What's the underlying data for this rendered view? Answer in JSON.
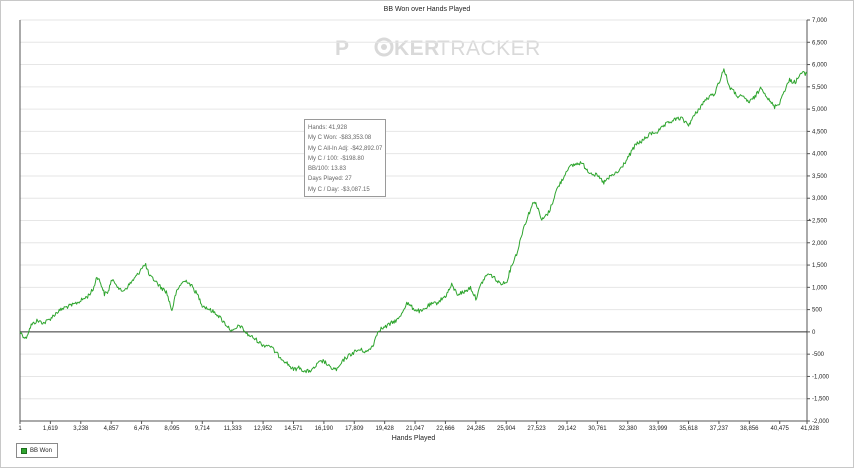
{
  "chart_data": {
    "type": "line",
    "title": "BB Won over Hands Played",
    "xlabel": "Hands Played",
    "ylabel": "",
    "y_axis_side": "right",
    "xlim": [
      1,
      41928
    ],
    "ylim": [
      -2000,
      7000
    ],
    "x_ticks": [
      1,
      1619,
      3238,
      4857,
      6476,
      8095,
      9714,
      11333,
      12952,
      14571,
      16190,
      17809,
      19428,
      21047,
      22666,
      24285,
      25904,
      27523,
      29142,
      30761,
      32380,
      33999,
      35618,
      37237,
      38856,
      40475,
      41928
    ],
    "x_tick_labels": [
      "1",
      "1,619",
      "3,238",
      "4,857",
      "6,476",
      "8,095",
      "9,714",
      "11,333",
      "12,952",
      "14,571",
      "16,190",
      "17,809",
      "19,428",
      "21,047",
      "22,666",
      "24,285",
      "25,904",
      "27,523",
      "29,142",
      "30,761",
      "32,380",
      "33,999",
      "35,618",
      "37,237",
      "38,856",
      "40,475",
      "41,928"
    ],
    "y_ticks": [
      -2000,
      -1500,
      -1000,
      -500,
      0,
      500,
      1000,
      1500,
      2000,
      2500,
      3000,
      3500,
      4000,
      4500,
      5000,
      5500,
      6000,
      6500,
      7000
    ],
    "y_tick_labels": [
      "-2,000",
      "-1,500",
      "-1,000",
      "-500",
      "0",
      "500",
      "1,000",
      "1,500",
      "2,000",
      "2,500",
      "3,000",
      "3,500",
      "4,000",
      "4,500",
      "5,000",
      "5,500",
      "6,000",
      "6,500",
      "7,000"
    ],
    "grid": "horizontal",
    "legend_placement": "bottom-left",
    "series": [
      {
        "name": "BB Won",
        "color": "#2fa52f",
        "points": [
          [
            1,
            0
          ],
          [
            300,
            -150
          ],
          [
            600,
            150
          ],
          [
            900,
            250
          ],
          [
            1300,
            200
          ],
          [
            1619,
            300
          ],
          [
            2000,
            450
          ],
          [
            2400,
            550
          ],
          [
            2800,
            600
          ],
          [
            3238,
            700
          ],
          [
            3600,
            800
          ],
          [
            3900,
            950
          ],
          [
            4100,
            1250
          ],
          [
            4300,
            1100
          ],
          [
            4500,
            850
          ],
          [
            4700,
            900
          ],
          [
            4857,
            1150
          ],
          [
            5100,
            1100
          ],
          [
            5400,
            900
          ],
          [
            5700,
            1000
          ],
          [
            6000,
            1150
          ],
          [
            6300,
            1300
          ],
          [
            6476,
            1450
          ],
          [
            6700,
            1500
          ],
          [
            6900,
            1250
          ],
          [
            7200,
            1150
          ],
          [
            7500,
            1000
          ],
          [
            7800,
            900
          ],
          [
            8095,
            480
          ],
          [
            8300,
            850
          ],
          [
            8600,
            1100
          ],
          [
            8900,
            1150
          ],
          [
            9200,
            1000
          ],
          [
            9500,
            800
          ],
          [
            9714,
            600
          ],
          [
            10100,
            500
          ],
          [
            10500,
            400
          ],
          [
            10900,
            200
          ],
          [
            11333,
            0
          ],
          [
            11700,
            150
          ],
          [
            12100,
            -50
          ],
          [
            12500,
            -150
          ],
          [
            12952,
            -300
          ],
          [
            13300,
            -300
          ],
          [
            13700,
            -500
          ],
          [
            14100,
            -650
          ],
          [
            14571,
            -850
          ],
          [
            14900,
            -800
          ],
          [
            15200,
            -900
          ],
          [
            15600,
            -850
          ],
          [
            15900,
            -700
          ],
          [
            16190,
            -650
          ],
          [
            16500,
            -800
          ],
          [
            16900,
            -850
          ],
          [
            17300,
            -600
          ],
          [
            17809,
            -450
          ],
          [
            18100,
            -400
          ],
          [
            18500,
            -450
          ],
          [
            18800,
            -300
          ],
          [
            19100,
            50
          ],
          [
            19428,
            100
          ],
          [
            19800,
            200
          ],
          [
            20200,
            300
          ],
          [
            20600,
            650
          ],
          [
            21047,
            500
          ],
          [
            21400,
            450
          ],
          [
            21800,
            600
          ],
          [
            22200,
            650
          ],
          [
            22666,
            800
          ],
          [
            23000,
            1050
          ],
          [
            23300,
            850
          ],
          [
            23700,
            900
          ],
          [
            24000,
            1000
          ],
          [
            24285,
            750
          ],
          [
            24600,
            1100
          ],
          [
            24900,
            1300
          ],
          [
            25200,
            1250
          ],
          [
            25500,
            1100
          ],
          [
            25904,
            1100
          ],
          [
            26200,
            1500
          ],
          [
            26500,
            1800
          ],
          [
            26800,
            2300
          ],
          [
            27100,
            2650
          ],
          [
            27400,
            2950
          ],
          [
            27523,
            2850
          ],
          [
            27800,
            2500
          ],
          [
            28200,
            2700
          ],
          [
            28600,
            3200
          ],
          [
            29000,
            3500
          ],
          [
            29142,
            3650
          ],
          [
            29500,
            3750
          ],
          [
            29900,
            3800
          ],
          [
            30300,
            3600
          ],
          [
            30761,
            3500
          ],
          [
            31100,
            3350
          ],
          [
            31500,
            3500
          ],
          [
            31900,
            3600
          ],
          [
            32380,
            3900
          ],
          [
            32800,
            4200
          ],
          [
            33200,
            4300
          ],
          [
            33600,
            4450
          ],
          [
            33999,
            4500
          ],
          [
            34400,
            4650
          ],
          [
            34800,
            4750
          ],
          [
            35200,
            4800
          ],
          [
            35618,
            4650
          ],
          [
            36000,
            4900
          ],
          [
            36500,
            5200
          ],
          [
            37000,
            5350
          ],
          [
            37237,
            5600
          ],
          [
            37500,
            5900
          ],
          [
            37800,
            5500
          ],
          [
            38200,
            5300
          ],
          [
            38600,
            5250
          ],
          [
            38856,
            5150
          ],
          [
            39200,
            5300
          ],
          [
            39500,
            5500
          ],
          [
            39900,
            5200
          ],
          [
            40200,
            5050
          ],
          [
            40475,
            5150
          ],
          [
            40700,
            5400
          ],
          [
            41000,
            5650
          ],
          [
            41300,
            5600
          ],
          [
            41600,
            5800
          ],
          [
            41928,
            5800
          ]
        ]
      }
    ]
  },
  "watermark": {
    "part1": "P",
    "part2": "KER",
    "part3": "TRACKER"
  },
  "tooltip": {
    "lines": [
      "Hands: 41,928",
      "My C Won: -$83,353.08",
      "My C All-In Adj: -$42,892.07",
      "My C / 100: -$198.80",
      "BB/100: 13.83",
      "Days Played: 27",
      "My C / Day: -$3,087.15"
    ]
  },
  "legend": {
    "label": "BB Won",
    "swatch_color": "#2fa52f"
  }
}
